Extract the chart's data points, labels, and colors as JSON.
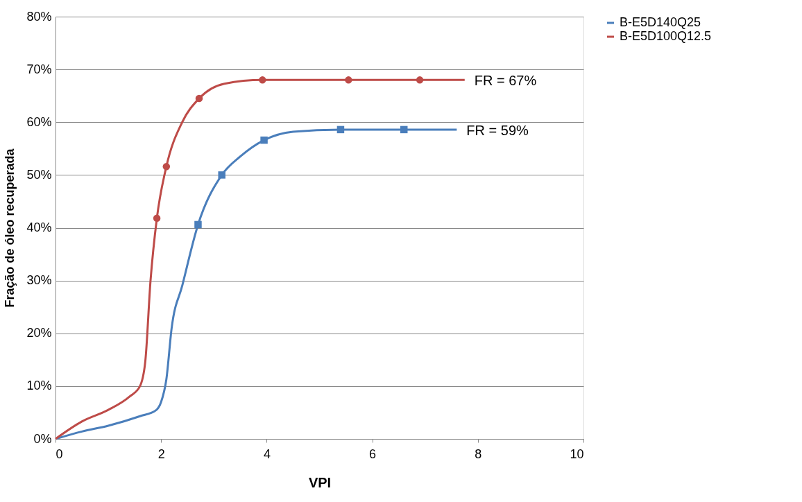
{
  "chart_data": {
    "type": "line",
    "xlabel": "VPI",
    "ylabel": "Fração de óleo recuperada",
    "xlim": [
      0,
      10
    ],
    "xticks": [
      0,
      2,
      4,
      6,
      8,
      10
    ],
    "ylim": [
      0,
      80
    ],
    "yticks": [
      {
        "value": 0,
        "label": "0%"
      },
      {
        "value": 10,
        "label": "10%"
      },
      {
        "value": 20,
        "label": "20%"
      },
      {
        "value": 30,
        "label": "30%"
      },
      {
        "value": 40,
        "label": "40%"
      },
      {
        "value": 50,
        "label": "50%"
      },
      {
        "value": 60,
        "label": "60%"
      },
      {
        "value": 70,
        "label": "70%"
      },
      {
        "value": 80,
        "label": "80%"
      }
    ],
    "grid": "y",
    "legend": "right",
    "line_style": "solid",
    "series": [
      {
        "name": "B-E5D140Q25",
        "color": "#4a7ebb",
        "x": [
          0,
          0.5,
          1,
          1.6,
          1.9,
          2.0,
          2.1,
          2.2,
          2.4,
          2.7,
          3.15,
          3.5,
          3.95,
          4.5,
          5.4,
          6.6,
          7.6
        ],
        "values": [
          0,
          1.4,
          2.5,
          4.3,
          5.4,
          7,
          11.3,
          21,
          29,
          40.6,
          50,
          53.5,
          56.6,
          58.2,
          58.6,
          58.6,
          58.6
        ]
      },
      {
        "type": "scatter",
        "color": "#4a7ebb",
        "marker": "square",
        "x": [
          2.7,
          3.15,
          3.95,
          5.4,
          6.6
        ],
        "values": [
          40.6,
          50,
          56.6,
          58.6,
          58.6
        ]
      },
      {
        "name": "B-E5D100Q12.5",
        "color": "#be4b48",
        "x": [
          0,
          0.5,
          1,
          1.4,
          1.6,
          1.7,
          1.8,
          1.92,
          2.1,
          2.4,
          2.72,
          3.2,
          3.92,
          5.55,
          6.9,
          7.75
        ],
        "values": [
          0,
          3.3,
          5.5,
          8,
          10,
          14.6,
          30,
          41.8,
          51.6,
          60,
          64.5,
          67.3,
          68,
          68,
          68,
          68
        ]
      },
      {
        "type": "scatter",
        "color": "#be4b48",
        "marker": "circle",
        "x": [
          1.92,
          2.1,
          2.72,
          3.92,
          5.55,
          6.9
        ],
        "values": [
          41.8,
          51.6,
          64.5,
          68,
          68,
          68
        ]
      }
    ],
    "annotations": [
      {
        "text": "FR = 67%",
        "x": 7.75,
        "y": 68
      },
      {
        "text": "FR = 59%",
        "x": 7.6,
        "y": 58.6
      }
    ]
  }
}
